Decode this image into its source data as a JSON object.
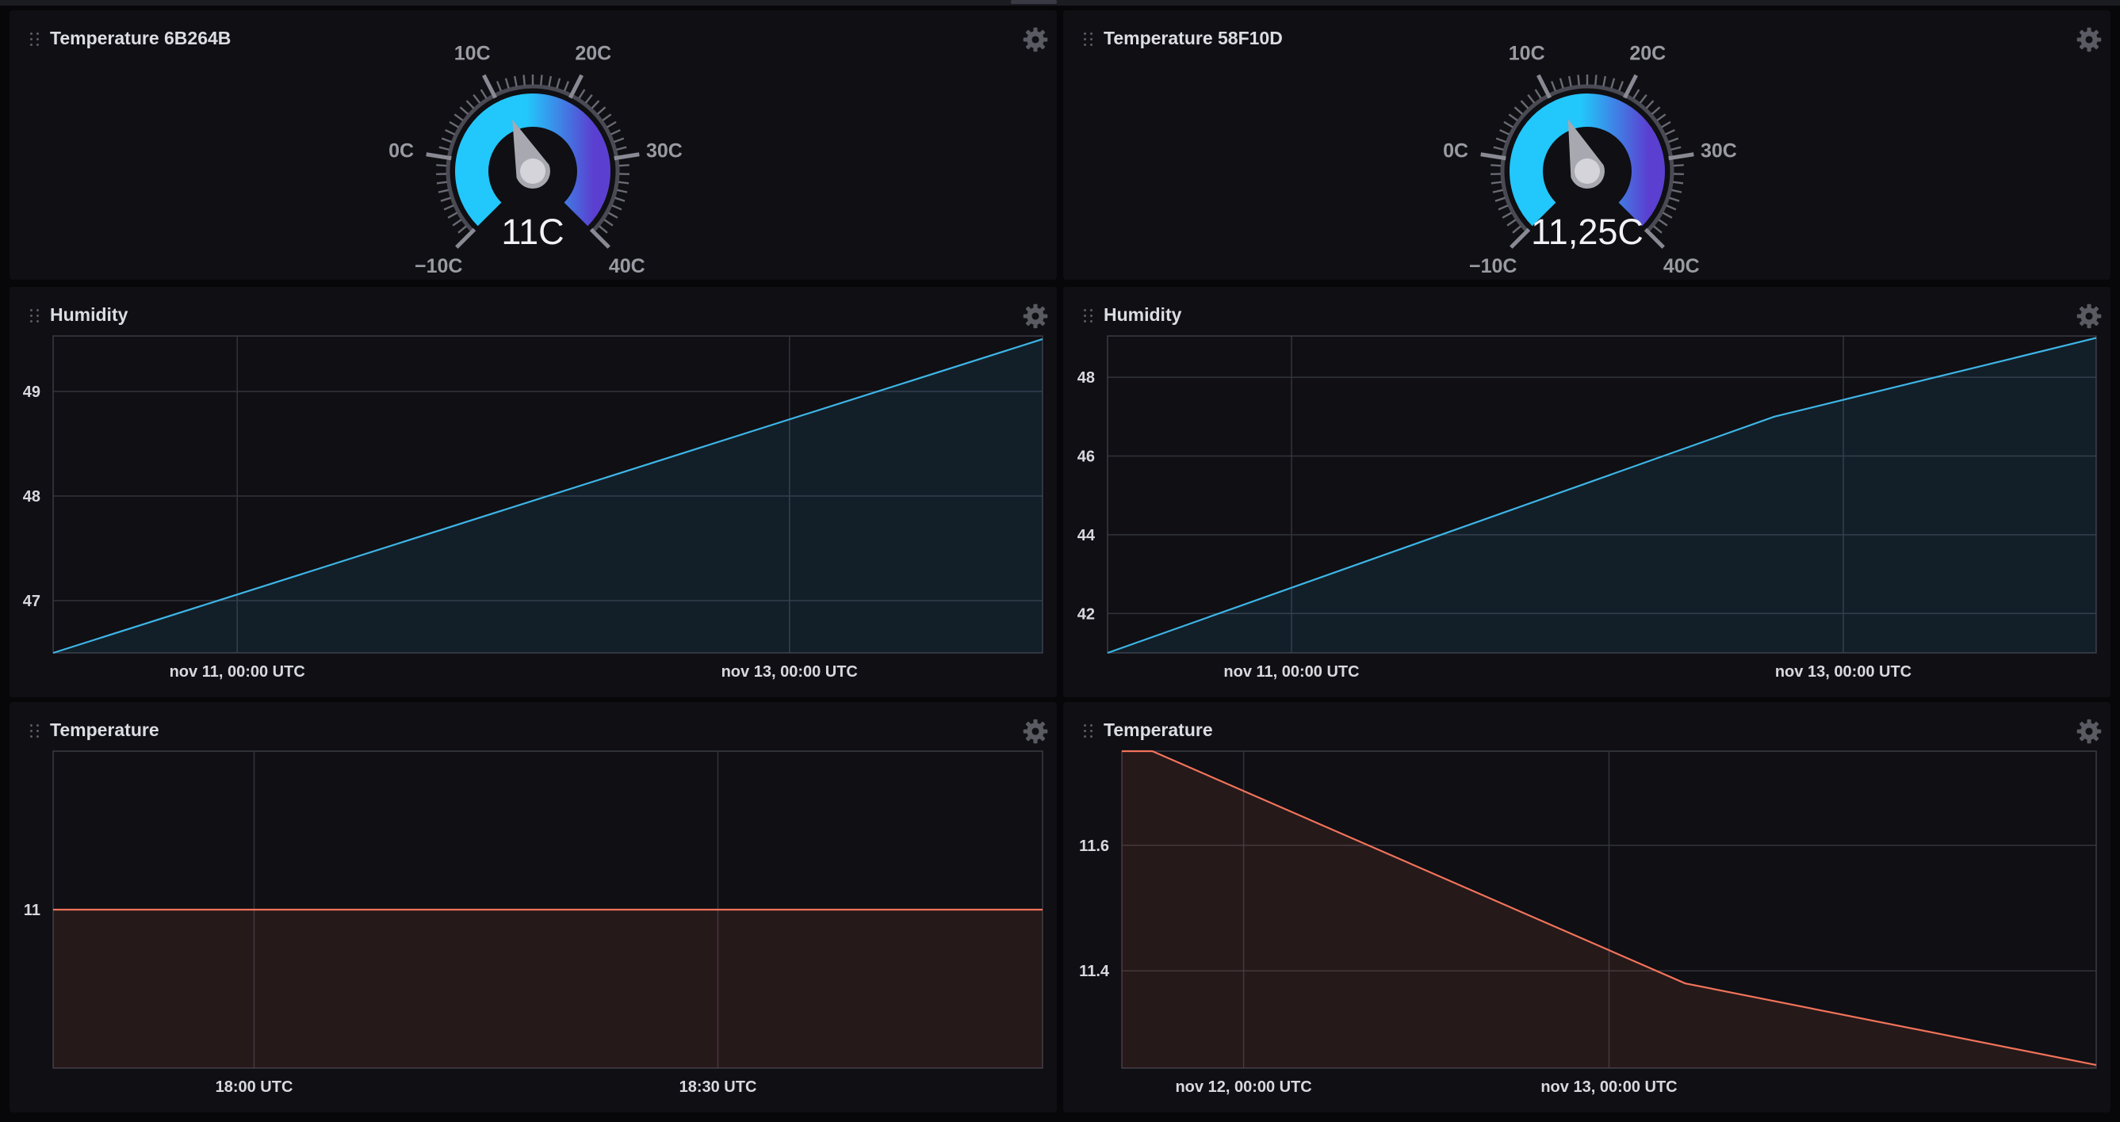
{
  "panels": {
    "gauge_left": {
      "title": "Temperature 6B264B",
      "value_text": "11C",
      "value": 11,
      "min": -10,
      "max": 40,
      "tick_labels": [
        "−10C",
        "0C",
        "10C",
        "20C",
        "30C",
        "40C"
      ]
    },
    "gauge_right": {
      "title": "Temperature 58F10D",
      "value_text": "11,25C",
      "value": 11.25,
      "min": -10,
      "max": 40,
      "tick_labels": [
        "−10C",
        "0C",
        "10C",
        "20C",
        "30C",
        "40C"
      ]
    },
    "humidity_left": {
      "title": "Humidity"
    },
    "humidity_right": {
      "title": "Humidity"
    },
    "temperature_left": {
      "title": "Temperature"
    },
    "temperature_right": {
      "title": "Temperature"
    }
  },
  "colors": {
    "gauge_gradient_start": "#22c7fb",
    "gauge_gradient_end": "#5b3fd0",
    "humidity_line": "#3eb5e6",
    "temperature_line": "#f2735a",
    "panel_bg": "#0f0f14",
    "page_bg": "#07070a"
  },
  "chart_data": [
    {
      "type": "area",
      "panel": "humidity_left",
      "x": [
        "2023-11-10T08:00Z",
        "2023-11-13T22:00Z"
      ],
      "y": [
        46.5,
        49.5
      ],
      "x_ticks": [
        "nov 11, 00:00 UTC",
        "nov 13, 00:00 UTC"
      ],
      "x_tick_values": [
        "2023-11-11T00:00Z",
        "2023-11-13T00:00Z"
      ],
      "y_ticks": [
        "47",
        "48",
        "49"
      ],
      "y_tick_values": [
        47,
        48,
        49
      ],
      "xlim": [
        "2023-11-10T08:00Z",
        "2023-11-13T22:00Z"
      ],
      "ylim": [
        46.5,
        49.53
      ],
      "grid": true
    },
    {
      "type": "area",
      "panel": "humidity_right",
      "x": [
        "2023-11-10T08:00Z",
        "2023-11-12T18:00Z",
        "2023-11-13T22:00Z"
      ],
      "y": [
        41,
        47,
        49
      ],
      "x_ticks": [
        "nov 11, 00:00 UTC",
        "nov 13, 00:00 UTC"
      ],
      "x_tick_values": [
        "2023-11-11T00:00Z",
        "2023-11-13T00:00Z"
      ],
      "y_ticks": [
        "42",
        "44",
        "46",
        "48"
      ],
      "y_tick_values": [
        42,
        44,
        46,
        48
      ],
      "xlim": [
        "2023-11-10T08:00Z",
        "2023-11-13T22:00Z"
      ],
      "ylim": [
        41,
        49.05
      ],
      "grid": true
    },
    {
      "type": "area",
      "panel": "temperature_left",
      "x": [
        "17:47",
        "18:51"
      ],
      "y": [
        11,
        11
      ],
      "x_ticks": [
        "18:00 UTC",
        "18:30 UTC"
      ],
      "x_tick_values": [
        "18:00",
        "18:30"
      ],
      "y_ticks": [
        "11"
      ],
      "y_tick_values": [
        11
      ],
      "xlim": [
        "17:47",
        "18:51"
      ],
      "ylim": [
        10.75,
        11.25
      ],
      "grid": true
    },
    {
      "type": "area",
      "panel": "temperature_right",
      "x": [
        "2023-11-11T16:00Z",
        "2023-11-11T18:00Z",
        "2023-11-13T05:00Z",
        "2023-11-14T08:00Z"
      ],
      "y": [
        11.75,
        11.75,
        11.38,
        11.25
      ],
      "x_ticks": [
        "nov 12, 00:00 UTC",
        "nov 13, 00:00 UTC"
      ],
      "x_tick_values": [
        "2023-11-12T00:00Z",
        "2023-11-13T00:00Z"
      ],
      "y_ticks": [
        "11.4",
        "11.6"
      ],
      "y_tick_values": [
        11.4,
        11.6
      ],
      "xlim": [
        "2023-11-11T16:00Z",
        "2023-11-14T08:00Z"
      ],
      "ylim": [
        11.245,
        11.75
      ],
      "grid": true
    }
  ]
}
